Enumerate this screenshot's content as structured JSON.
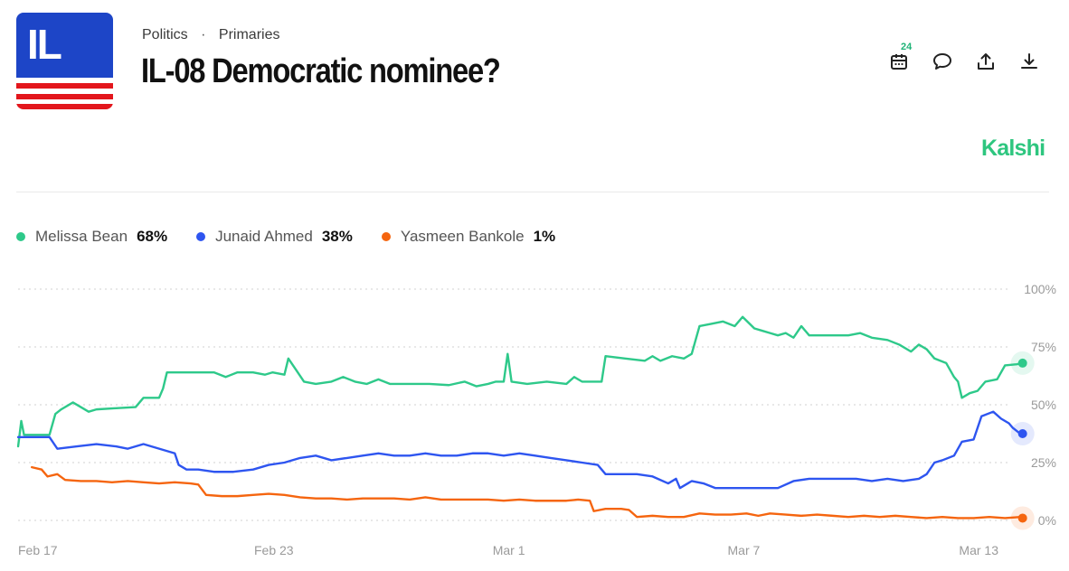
{
  "logo": {
    "text": "IL"
  },
  "breadcrumb": {
    "category": "Politics",
    "separator": "·",
    "subcategory": "Primaries"
  },
  "title": "IL-08 Democratic nominee?",
  "actions": {
    "calendar_badge": "24"
  },
  "brand": "Kalshi",
  "colors": {
    "melissa": "#2ec98a",
    "junaid": "#2e55f0",
    "yasmeen": "#f5650f",
    "grid": "#d9d9d9",
    "brand": "#2ec67f"
  },
  "legend": [
    {
      "name": "Melissa Bean",
      "value": "68%",
      "color": "#2ec98a"
    },
    {
      "name": "Junaid Ahmed",
      "value": "38%",
      "color": "#2e55f0"
    },
    {
      "name": "Yasmeen Bankole",
      "value": "1%",
      "color": "#f5650f"
    }
  ],
  "chart_data": {
    "type": "line",
    "title": "IL-08 Democratic nominee?",
    "xlabel": "",
    "ylabel": "",
    "ylim": [
      0,
      100
    ],
    "y_ticks": [
      "100%",
      "75%",
      "50%",
      "25%",
      "0%"
    ],
    "x_tick_labels": [
      "Feb 17",
      "Feb 23",
      "Mar 1",
      "Mar 7",
      "Mar 13"
    ],
    "x_tick_days": [
      0,
      6,
      12,
      18,
      24
    ],
    "x_range": [
      0,
      24.5
    ],
    "grid": true,
    "series": [
      {
        "name": "Melissa Bean",
        "color": "#2ec98a",
        "points": [
          [
            0,
            32
          ],
          [
            0.08,
            43
          ],
          [
            0.15,
            37
          ],
          [
            0.5,
            37
          ],
          [
            0.8,
            37
          ],
          [
            0.95,
            46
          ],
          [
            1.1,
            48
          ],
          [
            1.4,
            51
          ],
          [
            1.8,
            47
          ],
          [
            2.0,
            48
          ],
          [
            2.5,
            48.5
          ],
          [
            3.0,
            49
          ],
          [
            3.2,
            53
          ],
          [
            3.6,
            53
          ],
          [
            3.7,
            57
          ],
          [
            3.8,
            64
          ],
          [
            4.2,
            64
          ],
          [
            5.0,
            64
          ],
          [
            5.3,
            62
          ],
          [
            5.6,
            64
          ],
          [
            6.0,
            64
          ],
          [
            6.3,
            63
          ],
          [
            6.5,
            64
          ],
          [
            6.8,
            63
          ],
          [
            6.9,
            70
          ],
          [
            7.1,
            65
          ],
          [
            7.3,
            60
          ],
          [
            7.6,
            59
          ],
          [
            8.0,
            60
          ],
          [
            8.3,
            62
          ],
          [
            8.6,
            60
          ],
          [
            8.9,
            59
          ],
          [
            9.2,
            61
          ],
          [
            9.5,
            59
          ],
          [
            10.0,
            59
          ],
          [
            10.5,
            59
          ],
          [
            11.0,
            58.5
          ],
          [
            11.4,
            60
          ],
          [
            11.7,
            58
          ],
          [
            12.0,
            59
          ],
          [
            12.2,
            60
          ],
          [
            12.4,
            60
          ],
          [
            12.5,
            72
          ],
          [
            12.6,
            60
          ],
          [
            13.0,
            59
          ],
          [
            13.5,
            60
          ],
          [
            14.0,
            59
          ],
          [
            14.2,
            62
          ],
          [
            14.4,
            60
          ],
          [
            14.6,
            60
          ],
          [
            14.9,
            60
          ],
          [
            15.0,
            71
          ],
          [
            15.5,
            70
          ],
          [
            16.0,
            69
          ],
          [
            16.2,
            71
          ],
          [
            16.4,
            69
          ],
          [
            16.7,
            71
          ],
          [
            17.0,
            70
          ],
          [
            17.2,
            72
          ],
          [
            17.4,
            84
          ],
          [
            17.7,
            85
          ],
          [
            18.0,
            86
          ],
          [
            18.3,
            84
          ],
          [
            18.5,
            88
          ],
          [
            18.8,
            83
          ],
          [
            19.0,
            82
          ],
          [
            19.2,
            81
          ],
          [
            19.4,
            80
          ],
          [
            19.6,
            81
          ],
          [
            19.8,
            79
          ],
          [
            20.0,
            84
          ],
          [
            20.2,
            80
          ],
          [
            20.8,
            80
          ],
          [
            21.2,
            80
          ],
          [
            21.5,
            81
          ],
          [
            21.8,
            79
          ],
          [
            22.2,
            78
          ],
          [
            22.5,
            76
          ],
          [
            22.8,
            73
          ],
          [
            23.0,
            76
          ],
          [
            23.2,
            74
          ],
          [
            23.4,
            70
          ],
          [
            23.7,
            68
          ],
          [
            23.9,
            62
          ],
          [
            24.0,
            60
          ],
          [
            24.1,
            53
          ],
          [
            24.3,
            55
          ],
          [
            24.5,
            56
          ],
          [
            24.7,
            60
          ],
          [
            25.0,
            61
          ],
          [
            25.2,
            67
          ],
          [
            25.5,
            67.5
          ],
          [
            25.65,
            68
          ]
        ]
      },
      {
        "name": "Junaid Ahmed",
        "color": "#2e55f0",
        "points": [
          [
            0,
            36
          ],
          [
            0.8,
            36
          ],
          [
            1.0,
            31
          ],
          [
            1.5,
            32
          ],
          [
            2.0,
            33
          ],
          [
            2.5,
            32
          ],
          [
            2.8,
            31
          ],
          [
            3.2,
            33
          ],
          [
            3.6,
            31
          ],
          [
            4.0,
            29
          ],
          [
            4.1,
            24
          ],
          [
            4.3,
            22
          ],
          [
            4.6,
            22
          ],
          [
            5.0,
            21
          ],
          [
            5.5,
            21
          ],
          [
            6.0,
            22
          ],
          [
            6.4,
            24
          ],
          [
            6.8,
            25
          ],
          [
            7.2,
            27
          ],
          [
            7.6,
            28
          ],
          [
            8.0,
            26
          ],
          [
            8.4,
            27
          ],
          [
            8.8,
            28
          ],
          [
            9.2,
            29
          ],
          [
            9.6,
            28
          ],
          [
            10.0,
            28
          ],
          [
            10.4,
            29
          ],
          [
            10.8,
            28
          ],
          [
            11.2,
            28
          ],
          [
            11.6,
            29
          ],
          [
            12.0,
            29
          ],
          [
            12.4,
            28
          ],
          [
            12.8,
            29
          ],
          [
            13.2,
            28
          ],
          [
            13.6,
            27
          ],
          [
            14.0,
            26
          ],
          [
            14.4,
            25
          ],
          [
            14.8,
            24
          ],
          [
            15.0,
            20
          ],
          [
            15.4,
            20
          ],
          [
            15.8,
            20
          ],
          [
            16.2,
            19
          ],
          [
            16.6,
            16
          ],
          [
            16.8,
            18
          ],
          [
            16.9,
            14
          ],
          [
            17.2,
            17
          ],
          [
            17.5,
            16
          ],
          [
            17.8,
            14
          ],
          [
            18.2,
            14
          ],
          [
            18.6,
            14
          ],
          [
            19.0,
            14
          ],
          [
            19.4,
            14
          ],
          [
            19.8,
            17
          ],
          [
            20.2,
            18
          ],
          [
            20.6,
            18
          ],
          [
            21.0,
            18
          ],
          [
            21.4,
            18
          ],
          [
            21.8,
            17
          ],
          [
            22.2,
            18
          ],
          [
            22.6,
            17
          ],
          [
            23.0,
            18
          ],
          [
            23.2,
            20
          ],
          [
            23.4,
            25
          ],
          [
            23.6,
            26
          ],
          [
            23.9,
            28
          ],
          [
            24.1,
            34
          ],
          [
            24.4,
            35
          ],
          [
            24.6,
            45
          ],
          [
            24.9,
            47
          ],
          [
            25.1,
            44
          ],
          [
            25.3,
            42
          ],
          [
            25.4,
            40
          ],
          [
            25.55,
            38
          ],
          [
            25.65,
            37.5
          ]
        ]
      },
      {
        "name": "Yasmeen Bankole",
        "color": "#f5650f",
        "points": [
          [
            0.35,
            23
          ],
          [
            0.6,
            22
          ],
          [
            0.75,
            19
          ],
          [
            1.0,
            20
          ],
          [
            1.2,
            17.5
          ],
          [
            1.6,
            17
          ],
          [
            2.0,
            17
          ],
          [
            2.4,
            16.5
          ],
          [
            2.8,
            17
          ],
          [
            3.2,
            16.5
          ],
          [
            3.6,
            16
          ],
          [
            4.0,
            16.5
          ],
          [
            4.4,
            16
          ],
          [
            4.6,
            15.5
          ],
          [
            4.8,
            11
          ],
          [
            5.2,
            10.5
          ],
          [
            5.6,
            10.5
          ],
          [
            6.0,
            11
          ],
          [
            6.4,
            11.5
          ],
          [
            6.8,
            11
          ],
          [
            7.2,
            10
          ],
          [
            7.6,
            9.5
          ],
          [
            8.0,
            9.5
          ],
          [
            8.4,
            9
          ],
          [
            8.8,
            9.5
          ],
          [
            9.2,
            9.5
          ],
          [
            9.6,
            9.5
          ],
          [
            10.0,
            9
          ],
          [
            10.4,
            10
          ],
          [
            10.8,
            9
          ],
          [
            11.2,
            9
          ],
          [
            11.6,
            9
          ],
          [
            12.0,
            9
          ],
          [
            12.4,
            8.5
          ],
          [
            12.8,
            9
          ],
          [
            13.2,
            8.5
          ],
          [
            13.6,
            8.5
          ],
          [
            14.0,
            8.5
          ],
          [
            14.3,
            9
          ],
          [
            14.6,
            8.5
          ],
          [
            14.7,
            4
          ],
          [
            15.0,
            5
          ],
          [
            15.4,
            5
          ],
          [
            15.6,
            4.5
          ],
          [
            15.8,
            1.5
          ],
          [
            16.2,
            2
          ],
          [
            16.6,
            1.5
          ],
          [
            17.0,
            1.5
          ],
          [
            17.4,
            3
          ],
          [
            17.8,
            2.5
          ],
          [
            18.2,
            2.5
          ],
          [
            18.6,
            3
          ],
          [
            18.9,
            2
          ],
          [
            19.2,
            3
          ],
          [
            19.6,
            2.5
          ],
          [
            20.0,
            2
          ],
          [
            20.4,
            2.5
          ],
          [
            20.8,
            2
          ],
          [
            21.2,
            1.5
          ],
          [
            21.6,
            2
          ],
          [
            22.0,
            1.5
          ],
          [
            22.4,
            2
          ],
          [
            22.8,
            1.5
          ],
          [
            23.2,
            1
          ],
          [
            23.6,
            1.5
          ],
          [
            24.0,
            1
          ],
          [
            24.4,
            1
          ],
          [
            24.8,
            1.5
          ],
          [
            25.2,
            1
          ],
          [
            25.6,
            1.5
          ],
          [
            25.65,
            1
          ]
        ]
      }
    ]
  }
}
